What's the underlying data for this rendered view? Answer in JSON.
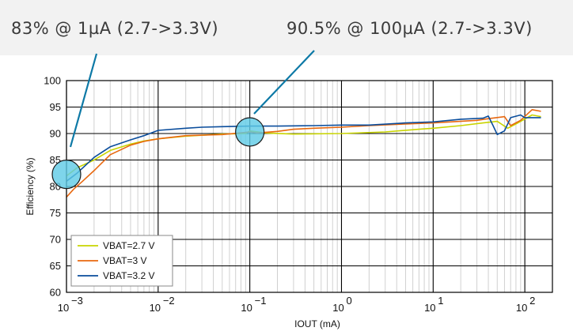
{
  "callouts": {
    "left": "83% @ 1µA (2.7->3.3V)",
    "right": "90.5% @ 100µA (2.7->3.3V)"
  },
  "chart_data": {
    "type": "line",
    "xscale": "log",
    "xlabel": "IOUT (mA)",
    "ylabel": "Efficiency (%)",
    "xlim": [
      0.001,
      200
    ],
    "ylim": [
      60,
      100
    ],
    "x_tick_labels": [
      {
        "x": 0.001,
        "base": "10",
        "exp": "−3"
      },
      {
        "x": 0.01,
        "base": "10",
        "exp": "−2"
      },
      {
        "x": 0.1,
        "base": "10",
        "exp": "−1"
      },
      {
        "x": 1,
        "base": "10",
        "exp": "0"
      },
      {
        "x": 10,
        "base": "10",
        "exp": "1"
      },
      {
        "x": 100,
        "base": "10",
        "exp": "2"
      }
    ],
    "y_ticks": [
      60,
      65,
      70,
      75,
      80,
      85,
      90,
      95,
      100
    ],
    "y_tick_labels": [
      "60",
      "65",
      "70",
      "75",
      "80",
      "85",
      "90",
      "95",
      "100"
    ],
    "legend_position": "bottom-left",
    "series": [
      {
        "name": "VBAT=2.7 V",
        "color": "#c8d400",
        "points": [
          [
            0.001,
            82
          ],
          [
            0.0013,
            83.5
          ],
          [
            0.002,
            85
          ],
          [
            0.003,
            86.8
          ],
          [
            0.005,
            88
          ],
          [
            0.007,
            88.6
          ],
          [
            0.01,
            89
          ],
          [
            0.02,
            89.5
          ],
          [
            0.05,
            89.9
          ],
          [
            0.09,
            90
          ],
          [
            0.1,
            90.5
          ],
          [
            0.15,
            90.1
          ],
          [
            0.3,
            89.9
          ],
          [
            1,
            90
          ],
          [
            3,
            90.3
          ],
          [
            7,
            90.8
          ],
          [
            10,
            91
          ],
          [
            20,
            91.5
          ],
          [
            35,
            92
          ],
          [
            50,
            92.3
          ],
          [
            65,
            91
          ],
          [
            80,
            91.8
          ],
          [
            120,
            93.5
          ],
          [
            150,
            93.2
          ]
        ]
      },
      {
        "name": "VBAT=3 V",
        "color": "#e8680f",
        "points": [
          [
            0.001,
            78
          ],
          [
            0.0012,
            79.5
          ],
          [
            0.0015,
            81
          ],
          [
            0.002,
            83
          ],
          [
            0.003,
            86
          ],
          [
            0.005,
            87.8
          ],
          [
            0.007,
            88.5
          ],
          [
            0.01,
            89
          ],
          [
            0.02,
            89.6
          ],
          [
            0.05,
            89.8
          ],
          [
            0.1,
            90.3
          ],
          [
            0.12,
            90.1
          ],
          [
            0.2,
            90.4
          ],
          [
            0.3,
            90.8
          ],
          [
            0.5,
            91
          ],
          [
            1,
            91.2
          ],
          [
            2,
            91.5
          ],
          [
            5,
            91.8
          ],
          [
            10,
            92
          ],
          [
            30,
            92.5
          ],
          [
            40,
            92.8
          ],
          [
            60,
            93.2
          ],
          [
            70,
            91.5
          ],
          [
            90,
            92.5
          ],
          [
            120,
            94.5
          ],
          [
            150,
            94.2
          ]
        ]
      },
      {
        "name": "VBAT=3.2 V",
        "color": "#0a4d9c",
        "points": [
          [
            0.001,
            81
          ],
          [
            0.0013,
            82.5
          ],
          [
            0.002,
            85.5
          ],
          [
            0.003,
            87.5
          ],
          [
            0.005,
            88.8
          ],
          [
            0.007,
            89.6
          ],
          [
            0.01,
            90.6
          ],
          [
            0.02,
            91
          ],
          [
            0.03,
            91.2
          ],
          [
            0.05,
            91.3
          ],
          [
            0.1,
            91.4
          ],
          [
            0.2,
            91.4
          ],
          [
            0.5,
            91.5
          ],
          [
            1,
            91.6
          ],
          [
            2,
            91.6
          ],
          [
            5,
            92
          ],
          [
            10,
            92.2
          ],
          [
            20,
            92.7
          ],
          [
            35,
            92.9
          ],
          [
            40,
            93.3
          ],
          [
            45,
            91.5
          ],
          [
            50,
            89.8
          ],
          [
            60,
            90.5
          ],
          [
            70,
            93
          ],
          [
            90,
            93.5
          ],
          [
            100,
            93
          ],
          [
            150,
            93
          ]
        ]
      }
    ],
    "markers": [
      {
        "x": 0.001,
        "y": 82.3,
        "color": "#5ecbe6"
      },
      {
        "x": 0.1,
        "y": 90.3,
        "color": "#5ecbe6"
      }
    ]
  }
}
